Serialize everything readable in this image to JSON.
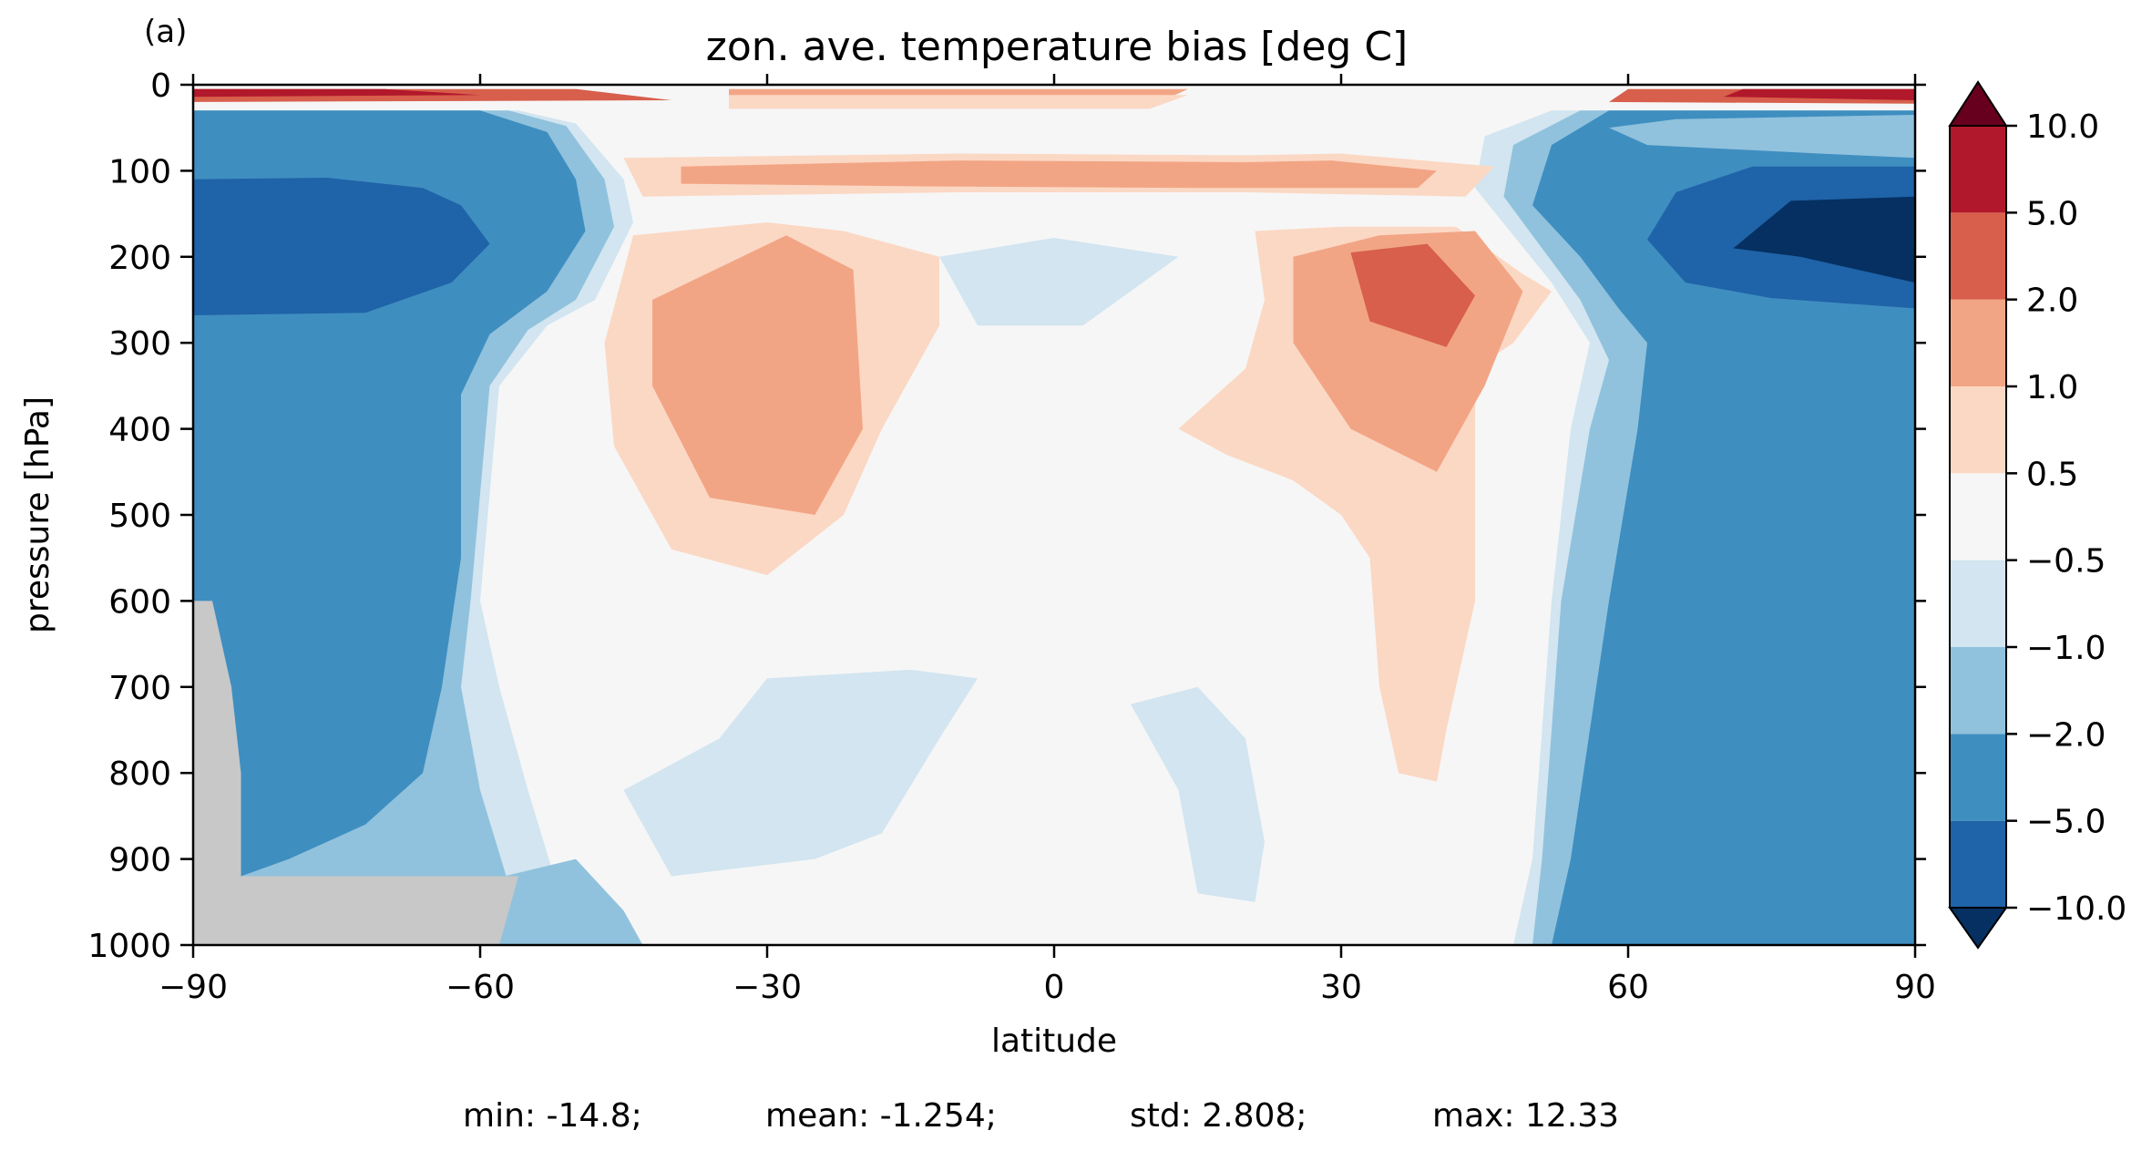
{
  "panel_label": "(a)",
  "colors": {
    "below_min": "#053061",
    "above_max": "#67001f",
    "levels": [
      "#1f63a8",
      "#3f8ec0",
      "#90c2dd",
      "#d2e5f0",
      "#f6f6f6",
      "#fbd8c4",
      "#f2a585",
      "#d75f4c",
      "#b2182b"
    ],
    "land_mask": "#c8c8c8"
  },
  "chart_data": {
    "type": "heatmap",
    "subtype": "filled contour",
    "title": "zon. ave. temperature bias [deg C]",
    "xlabel": "latitude",
    "ylabel": "pressure [hPa]",
    "xlim": [
      -90,
      90
    ],
    "ylim": [
      1000,
      0
    ],
    "y_inverted": true,
    "xticks": [
      -90,
      -60,
      -30,
      0,
      30,
      60,
      90
    ],
    "yticks": [
      0,
      100,
      200,
      300,
      400,
      500,
      600,
      700,
      800,
      900,
      1000
    ],
    "xtick_labels": [
      "−90",
      "−60",
      "−30",
      "0",
      "30",
      "60",
      "90"
    ],
    "ytick_labels": [
      "0",
      "100",
      "200",
      "300",
      "400",
      "500",
      "600",
      "700",
      "800",
      "900",
      "1000"
    ],
    "colorbar": {
      "levels": [
        -10.0,
        -5.0,
        -2.0,
        -1.0,
        -0.5,
        0.5,
        1.0,
        2.0,
        5.0,
        10.0
      ],
      "tick_labels": [
        "−10.0",
        "−5.0",
        "−2.0",
        "−1.0",
        "−0.5",
        "0.5",
        "1.0",
        "2.0",
        "5.0",
        "10.0"
      ],
      "extend": "both"
    },
    "regions": [
      {
        "band": [
          -10,
          -5
        ],
        "lat": [
          [
            -87,
            -76
          ],
          [
            -76,
            -62
          ],
          [
            -62,
            -57
          ],
          [
            -58,
            -65
          ],
          [
            -66,
            -80
          ],
          [
            -80,
            -87
          ]
        ],
        "p": [
          [
            120,
            110
          ],
          [
            110,
            115
          ],
          [
            115,
            185
          ],
          [
            185,
            265
          ],
          [
            265,
            270
          ],
          [
            270,
            265
          ]
        ]
      },
      {
        "band": [
          -10,
          -5
        ],
        "lat": [
          [
            63,
            72
          ],
          [
            72,
            90
          ],
          [
            90,
            90
          ],
          [
            90,
            72
          ],
          [
            72,
            63
          ]
        ],
        "p": [
          [
            185,
            95
          ],
          [
            95,
            100
          ],
          [
            100,
            270
          ],
          [
            270,
            245
          ],
          [
            245,
            200
          ]
        ]
      },
      {
        "band": [
          -10,
          -10
        ],
        "lat": [
          [
            71,
            77
          ],
          [
            77,
            90
          ],
          [
            90,
            90
          ],
          [
            90,
            71
          ]
        ],
        "p": [
          [
            195,
            150
          ],
          [
            150,
            130
          ],
          [
            130,
            230
          ],
          [
            230,
            195
          ]
        ]
      },
      {
        "band": [
          0.5,
          1.0
        ],
        "lat": [
          [
            -43,
            -10
          ],
          [
            -10,
            20
          ],
          [
            20,
            29
          ],
          [
            29,
            43
          ],
          [
            43,
            38
          ],
          [
            38,
            15
          ],
          [
            15,
            -20
          ],
          [
            -20,
            -43
          ]
        ],
        "p": [
          [
            120,
            85
          ],
          [
            85,
            90
          ],
          [
            90,
            85
          ],
          [
            85,
            95
          ],
          [
            95,
            130
          ],
          [
            130,
            120
          ],
          [
            120,
            125
          ],
          [
            125,
            125
          ]
        ]
      },
      {
        "band": [
          1.0,
          2.0
        ],
        "lat": [
          [
            -42,
            -28
          ],
          [
            -28,
            -21
          ],
          [
            -21,
            -20
          ],
          [
            -20,
            -25
          ],
          [
            -25,
            -36
          ],
          [
            -36,
            -42
          ]
        ],
        "p": [
          [
            250,
            175
          ],
          [
            175,
            215
          ],
          [
            215,
            400
          ],
          [
            400,
            500
          ],
          [
            500,
            480
          ],
          [
            480,
            250
          ]
        ]
      },
      {
        "band": [
          1.0,
          2.0
        ],
        "lat": [
          [
            25,
            34
          ],
          [
            34,
            44
          ],
          [
            44,
            49
          ],
          [
            49,
            45
          ],
          [
            45,
            40
          ],
          [
            40,
            31
          ],
          [
            31,
            25
          ]
        ],
        "p": [
          [
            200,
            175
          ],
          [
            175,
            170
          ],
          [
            170,
            240
          ],
          [
            240,
            350
          ],
          [
            350,
            450
          ],
          [
            450,
            400
          ],
          [
            400,
            300
          ]
        ]
      },
      {
        "band": [
          2.0,
          5.0
        ],
        "lat": [
          [
            31,
            39
          ],
          [
            39,
            44
          ],
          [
            44,
            41
          ],
          [
            41,
            33
          ]
        ],
        "p": [
          [
            195,
            185
          ],
          [
            185,
            245
          ],
          [
            245,
            305
          ],
          [
            305,
            275
          ]
        ]
      },
      {
        "band": [
          -1.0,
          -0.5
        ],
        "lat": [
          [
            -12,
            5
          ],
          [
            5,
            13
          ],
          [
            13,
            3
          ],
          [
            3,
            -8
          ]
        ],
        "p": [
          [
            200,
            180
          ],
          [
            180,
            200
          ],
          [
            200,
            280
          ],
          [
            280,
            280
          ]
        ]
      },
      {
        "band": [
          5.0,
          10.0
        ],
        "lat": [
          [
            -90,
            -55
          ],
          [
            -55,
            -90
          ]
        ],
        "p": [
          [
            5,
            5
          ],
          [
            5,
            20
          ]
        ]
      },
      {
        "band": [
          5.0,
          10.0
        ],
        "lat": [
          [
            63,
            90
          ],
          [
            90,
            63
          ]
        ],
        "p": [
          [
            5,
            5
          ],
          [
            5,
            20
          ]
        ]
      }
    ],
    "stats": {
      "min": "-14.8",
      "mean": "-1.254",
      "std": "2.808",
      "max": "12.33"
    }
  },
  "footer": {
    "min_text": "min: -14.8;",
    "mean_text": "mean: -1.254;",
    "std_text": "std: 2.808;",
    "max_text": "max: 12.33"
  }
}
